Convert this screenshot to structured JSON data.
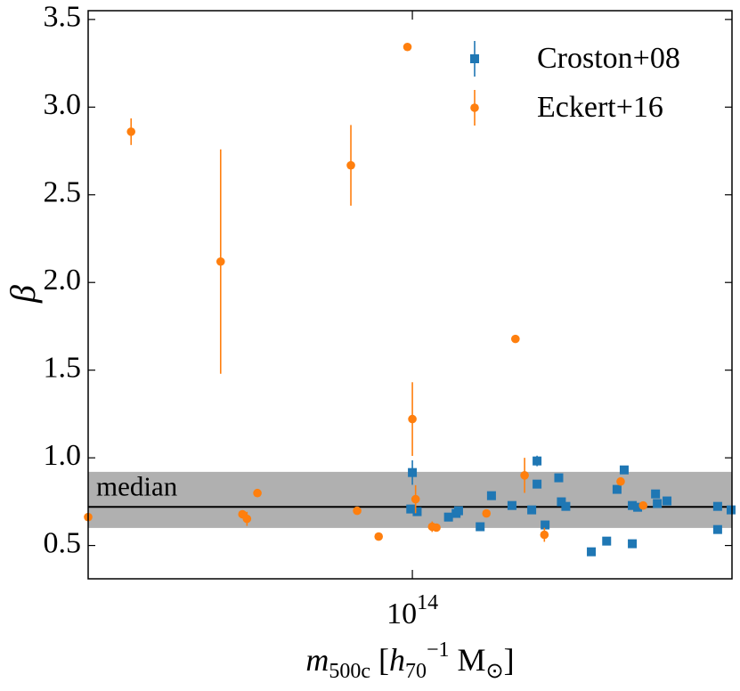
{
  "chart_data": {
    "type": "scatter",
    "xscale": "log",
    "ylabel": "β",
    "xlabel": [
      {
        "text": "m",
        "pos": "base",
        "italic": true
      },
      {
        "text": "500c",
        "pos": "sub"
      },
      {
        "text": " [",
        "pos": "base"
      },
      {
        "text": "h",
        "pos": "base",
        "italic": true
      },
      {
        "text": "70",
        "pos": "sub"
      },
      {
        "text": "−1",
        "pos": "sup"
      },
      {
        "text": " M",
        "pos": "base"
      },
      {
        "text": "⊙",
        "pos": "sub"
      },
      {
        "text": "]",
        "pos": "base"
      }
    ],
    "xlim": [
      13500000000000.0,
      720000000000000.0
    ],
    "ylim": [
      0.31,
      3.55
    ],
    "xticks": [
      {
        "value": 100000000000000.0,
        "label": "10",
        "exponent": "14"
      }
    ],
    "yticks": [
      0.5,
      1.0,
      1.5,
      2.0,
      2.5,
      3.0,
      3.5
    ],
    "yticklabels": [
      "0.5",
      "1.0",
      "1.5",
      "2.0",
      "2.5",
      "3.0",
      "3.5"
    ],
    "median": 0.72,
    "median_label": "median",
    "band": [
      0.6,
      0.92
    ],
    "band_color": "#b0b0b0",
    "legend": "upper right",
    "series": [
      {
        "name": "Croston+08",
        "color": "#1f77b4",
        "marker": "square",
        "x": [
          100000000000000.0,
          99000000000000.0,
          103000000000000.0,
          125000000000000.0,
          131000000000000.0,
          133000000000000.0,
          152000000000000.0,
          163000000000000.0,
          185000000000000.0,
          209000000000000.0,
          216000000000000.0,
          216000000000000.0,
          227000000000000.0,
          247000000000000.0,
          251000000000000.0,
          258000000000000.0,
          302000000000000.0,
          332000000000000.0,
          354000000000000.0,
          370000000000000.0,
          389000000000000.0,
          389000000000000.0,
          402000000000000.0,
          449000000000000.0,
          454000000000000.0,
          482000000000000.0,
          659000000000000.0,
          659000000000000.0,
          716000000000000.0
        ],
        "values": [
          0.916,
          0.708,
          0.693,
          0.662,
          0.683,
          0.698,
          0.607,
          0.784,
          0.728,
          0.703,
          0.982,
          0.85,
          0.617,
          0.886,
          0.749,
          0.723,
          0.464,
          0.525,
          0.82,
          0.931,
          0.728,
          0.51,
          0.718,
          0.794,
          0.739,
          0.754,
          0.723,
          0.591,
          0.703
        ],
        "errors": [
          0.07,
          0.01,
          0.01,
          0.01,
          0.01,
          0.01,
          0.01,
          0.01,
          0.01,
          0.01,
          0.03,
          0.02,
          0.01,
          0.01,
          0.01,
          0.01,
          0.01,
          0.01,
          0.01,
          0.01,
          0.01,
          0.01,
          0.01,
          0.01,
          0.02,
          0.01,
          0.02,
          0.01,
          0.01
        ]
      },
      {
        "name": "Eckert+16",
        "color": "#ff7f0e",
        "marker": "circle",
        "x": [
          13500000000000.0,
          17600000000000.0,
          30600000000000.0,
          35000000000000.0,
          36000000000000.0,
          38400000000000.0,
          68400000000000.0,
          71100000000000.0,
          81200000000000.0,
          97000000000000.0,
          100000000000000.0,
          102000000000000.0,
          113000000000000.0,
          116000000000000.0,
          158000000000000.0,
          189000000000000.0,
          200000000000000.0,
          226000000000000.0,
          362000000000000.0,
          416000000000000.0
        ],
        "values": [
          0.662,
          2.86,
          2.119,
          0.678,
          0.652,
          0.799,
          2.668,
          0.698,
          0.551,
          3.343,
          1.221,
          0.764,
          0.607,
          0.602,
          0.683,
          1.678,
          0.9,
          0.561,
          0.865,
          0.728
        ],
        "errors": [
          0.01,
          0.076,
          0.64,
          0.02,
          0.04,
          0.01,
          0.23,
          0.01,
          0.02,
          0.02,
          0.21,
          0.08,
          0.03,
          0.02,
          0.01,
          0.01,
          0.1,
          0.04,
          0.01,
          0.01
        ]
      }
    ]
  }
}
